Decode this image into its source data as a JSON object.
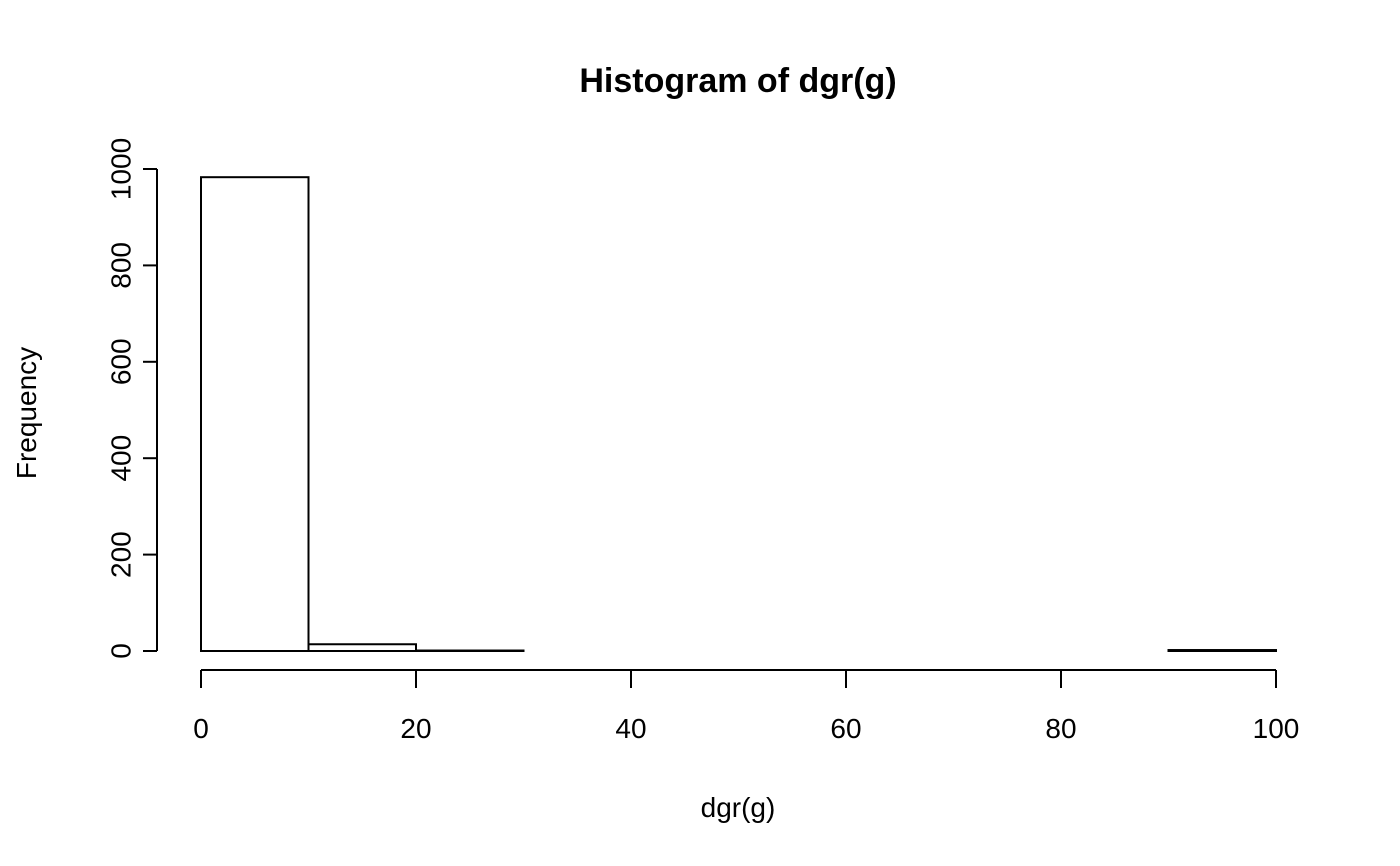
{
  "chart_data": {
    "type": "bar",
    "title": "Histogram of dgr(g)",
    "xlabel": "dgr(g)",
    "ylabel": "Frequency",
    "bin_edges": [
      0,
      10,
      20,
      30,
      40,
      50,
      60,
      70,
      80,
      90,
      100
    ],
    "values": [
      983,
      14,
      1,
      0,
      0,
      0,
      0,
      0,
      0,
      2
    ],
    "xlim": [
      0,
      100
    ],
    "ylim": [
      0,
      1000
    ],
    "x_ticks": [
      0,
      20,
      40,
      60,
      80,
      100
    ],
    "y_ticks": [
      0,
      200,
      400,
      600,
      800,
      1000
    ],
    "grid": false,
    "colors": {
      "bar_fill": "#ffffff",
      "bar_stroke": "#000000"
    }
  }
}
